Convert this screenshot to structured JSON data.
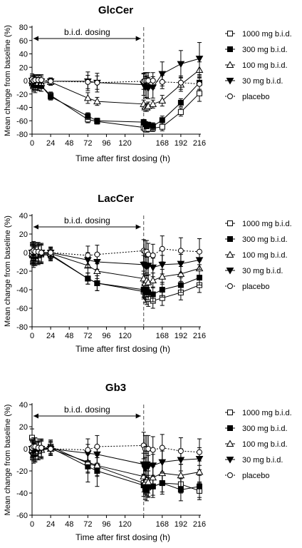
{
  "legend": [
    {
      "name": "1000 mg b.i.d.",
      "marker": "square-open"
    },
    {
      "name": "300 mg b.i.d.",
      "marker": "square-filled"
    },
    {
      "name": "100 mg b.i.d.",
      "marker": "triangle-up-open"
    },
    {
      "name": "30 mg b.i.d.",
      "marker": "triangle-down-filled"
    },
    {
      "name": "placebo",
      "marker": "circle-open"
    }
  ],
  "chart_data": [
    {
      "type": "line",
      "title": "GlcCer",
      "xlabel": "Time after first dosing (h)",
      "ylabel": "Mean change from baseline (%)",
      "annotation": "b.i.d. dosing",
      "dosing_range": [
        0,
        144
      ],
      "vline_x": 144,
      "xticks": [
        0,
        24,
        48,
        72,
        96,
        120,
        144,
        168,
        192,
        216
      ],
      "xtick_labels": [
        "0",
        "24",
        "48",
        "72",
        "96",
        "120",
        "",
        "168",
        "192",
        "216"
      ],
      "yticks": [
        -80,
        -60,
        -40,
        -20,
        0,
        20,
        40,
        60,
        80
      ],
      "xlim": [
        0,
        216
      ],
      "ylim": [
        -80,
        80
      ],
      "series": [
        {
          "name": "1000 mg b.i.d.",
          "x": [
            0,
            2,
            4,
            8,
            12,
            24,
            72,
            84,
            144,
            146,
            148,
            150,
            156,
            168,
            192,
            216
          ],
          "y": [
            -4,
            -8,
            -10,
            -6,
            -8,
            -22,
            -58,
            -61,
            -70,
            -72,
            -73,
            -72,
            -71,
            -69,
            -47,
            -19
          ],
          "err": [
            8,
            8,
            8,
            8,
            8,
            5,
            5,
            4,
            4,
            4,
            4,
            4,
            5,
            6,
            6,
            12
          ]
        },
        {
          "name": "300 mg b.i.d.",
          "x": [
            0,
            2,
            4,
            8,
            12,
            24,
            72,
            84,
            144,
            146,
            148,
            150,
            156,
            168,
            192,
            216
          ],
          "y": [
            -2,
            -6,
            -5,
            -7,
            -8,
            -24,
            -53,
            -60,
            -62,
            -65,
            -68,
            -66,
            -68,
            -59,
            -33,
            -3
          ],
          "err": [
            8,
            8,
            8,
            8,
            8,
            5,
            5,
            4,
            4,
            4,
            4,
            4,
            5,
            6,
            6,
            10
          ]
        },
        {
          "name": "100 mg b.i.d.",
          "x": [
            0,
            2,
            4,
            8,
            12,
            24,
            72,
            84,
            144,
            146,
            148,
            150,
            156,
            168,
            192,
            216
          ],
          "y": [
            0,
            -2,
            -3,
            -3,
            -4,
            -2,
            -26,
            -31,
            -35,
            -40,
            -40,
            -38,
            -35,
            -30,
            -6,
            16
          ],
          "err": [
            8,
            8,
            8,
            8,
            8,
            5,
            8,
            6,
            6,
            6,
            6,
            6,
            6,
            8,
            10,
            12
          ]
        },
        {
          "name": "30 mg b.i.d.",
          "x": [
            0,
            2,
            4,
            8,
            12,
            24,
            72,
            84,
            144,
            146,
            148,
            150,
            156,
            168,
            192,
            216
          ],
          "y": [
            0,
            -2,
            -1,
            0,
            -1,
            -1,
            -1,
            -3,
            -6,
            -10,
            -9,
            -11,
            -10,
            10,
            25,
            33
          ],
          "err": [
            8,
            8,
            8,
            8,
            8,
            5,
            14,
            14,
            16,
            16,
            16,
            16,
            16,
            18,
            20,
            24
          ]
        },
        {
          "name": "placebo",
          "x": [
            0,
            2,
            4,
            8,
            12,
            24,
            72,
            84,
            144,
            146,
            148,
            150,
            156,
            168,
            192,
            216
          ],
          "y": [
            2,
            0,
            1,
            1,
            1,
            -1,
            -2,
            -3,
            -1,
            0,
            0,
            0,
            0,
            -2,
            -3,
            -5
          ],
          "err": [
            8,
            8,
            8,
            8,
            8,
            5,
            10,
            10,
            12,
            12,
            12,
            12,
            12,
            10,
            10,
            10
          ]
        }
      ]
    },
    {
      "type": "line",
      "title": "LacCer",
      "xlabel": "Time after first dosing (h)",
      "ylabel": "Mean change from baseline (%)",
      "annotation": "b.i.d. dosing",
      "dosing_range": [
        0,
        144
      ],
      "vline_x": 144,
      "xticks": [
        0,
        24,
        48,
        72,
        96,
        120,
        144,
        168,
        192,
        216
      ],
      "xtick_labels": [
        "0",
        "24",
        "48",
        "72",
        "96",
        "120",
        "",
        "168",
        "192",
        "216"
      ],
      "yticks": [
        -80,
        -60,
        -40,
        -20,
        0,
        20,
        40
      ],
      "xlim": [
        0,
        216
      ],
      "ylim": [
        -80,
        40
      ],
      "series": [
        {
          "name": "1000 mg b.i.d.",
          "x": [
            0,
            2,
            4,
            8,
            12,
            24,
            72,
            84,
            144,
            146,
            148,
            150,
            156,
            168,
            192,
            216
          ],
          "y": [
            -3,
            -6,
            -4,
            -3,
            -2,
            -3,
            -28,
            -33,
            -42,
            -46,
            -48,
            -50,
            -52,
            -49,
            -43,
            -35
          ],
          "err": [
            10,
            10,
            10,
            10,
            10,
            6,
            6,
            8,
            8,
            8,
            8,
            8,
            8,
            8,
            8,
            8
          ]
        },
        {
          "name": "300 mg b.i.d.",
          "x": [
            0,
            2,
            4,
            8,
            12,
            24,
            72,
            84,
            144,
            146,
            148,
            150,
            156,
            168,
            192,
            216
          ],
          "y": [
            -2,
            -4,
            -3,
            -2,
            -1,
            -2,
            -28,
            -33,
            -40,
            -42,
            -40,
            -43,
            -45,
            -40,
            -35,
            -27
          ],
          "err": [
            10,
            10,
            10,
            10,
            10,
            6,
            6,
            8,
            8,
            8,
            8,
            8,
            8,
            8,
            8,
            8
          ]
        },
        {
          "name": "100 mg b.i.d.",
          "x": [
            0,
            2,
            4,
            8,
            12,
            24,
            72,
            84,
            144,
            146,
            148,
            150,
            156,
            168,
            192,
            216
          ],
          "y": [
            -1,
            -2,
            -2,
            -1,
            0,
            -1,
            -14,
            -20,
            -28,
            -33,
            -30,
            -32,
            -30,
            -26,
            -23,
            -17
          ],
          "err": [
            10,
            10,
            10,
            10,
            10,
            6,
            8,
            8,
            8,
            8,
            8,
            8,
            8,
            8,
            8,
            8
          ]
        },
        {
          "name": "30 mg b.i.d.",
          "x": [
            0,
            2,
            4,
            8,
            12,
            24,
            72,
            84,
            144,
            146,
            148,
            150,
            156,
            168,
            192,
            216
          ],
          "y": [
            0,
            -1,
            0,
            0,
            0,
            0,
            -8,
            -10,
            -13,
            -14,
            -15,
            -14,
            -16,
            -13,
            -12,
            -8
          ],
          "err": [
            10,
            10,
            10,
            10,
            10,
            6,
            8,
            8,
            10,
            10,
            10,
            10,
            10,
            10,
            10,
            10
          ]
        },
        {
          "name": "placebo",
          "x": [
            0,
            2,
            4,
            8,
            12,
            24,
            72,
            84,
            144,
            146,
            148,
            150,
            156,
            168,
            192,
            216
          ],
          "y": [
            1,
            2,
            1,
            1,
            0,
            0,
            -3,
            -2,
            2,
            1,
            1,
            -2,
            -3,
            4,
            2,
            1
          ],
          "err": [
            10,
            10,
            10,
            10,
            10,
            6,
            10,
            10,
            12,
            12,
            12,
            12,
            12,
            14,
            14,
            14
          ]
        }
      ]
    },
    {
      "type": "line",
      "title": "Gb3",
      "xlabel": "Time after first dosing (h)",
      "ylabel": "Mean change from baseline (%)",
      "annotation": "b.i.d. dosing",
      "dosing_range": [
        0,
        144
      ],
      "vline_x": 144,
      "xticks": [
        0,
        24,
        48,
        72,
        96,
        120,
        144,
        168,
        192,
        216
      ],
      "xtick_labels": [
        "0",
        "24",
        "48",
        "72",
        "96",
        "120",
        "",
        "168",
        "192",
        "216"
      ],
      "yticks": [
        -60,
        -40,
        -20,
        0,
        20,
        40
      ],
      "xlim": [
        0,
        216
      ],
      "ylim": [
        -60,
        40
      ],
      "series": [
        {
          "name": "1000 mg b.i.d.",
          "x": [
            0,
            2,
            4,
            8,
            12,
            24,
            72,
            84,
            144,
            146,
            148,
            150,
            156,
            168,
            192,
            216
          ],
          "y": [
            10,
            -3,
            -2,
            -1,
            0,
            2,
            -13,
            -16,
            -31,
            -33,
            -34,
            -35,
            -34,
            -31,
            -32,
            -38
          ],
          "err": [
            8,
            8,
            8,
            8,
            8,
            6,
            8,
            8,
            8,
            8,
            8,
            8,
            8,
            8,
            8,
            8
          ]
        },
        {
          "name": "300 mg b.i.d.",
          "x": [
            0,
            2,
            4,
            8,
            12,
            24,
            72,
            84,
            144,
            146,
            148,
            150,
            156,
            168,
            192,
            216
          ],
          "y": [
            -2,
            -5,
            -4,
            -2,
            -1,
            1,
            -16,
            -20,
            -33,
            -36,
            -37,
            -34,
            -34,
            -31,
            -37,
            -34
          ],
          "err": [
            8,
            8,
            8,
            8,
            8,
            6,
            14,
            14,
            10,
            10,
            10,
            10,
            10,
            10,
            10,
            10
          ]
        },
        {
          "name": "100 mg b.i.d.",
          "x": [
            0,
            2,
            4,
            8,
            12,
            24,
            72,
            84,
            144,
            146,
            148,
            150,
            156,
            168,
            192,
            216
          ],
          "y": [
            -1,
            -3,
            -3,
            -2,
            -1,
            0,
            -12,
            -15,
            -25,
            -30,
            -28,
            -30,
            -26,
            -22,
            -24,
            -21
          ],
          "err": [
            8,
            8,
            8,
            8,
            8,
            6,
            10,
            10,
            10,
            10,
            10,
            10,
            10,
            10,
            10,
            10
          ]
        },
        {
          "name": "30 mg b.i.d.",
          "x": [
            0,
            2,
            4,
            8,
            12,
            24,
            72,
            84,
            144,
            146,
            148,
            150,
            156,
            168,
            192,
            216
          ],
          "y": [
            0,
            -2,
            -1,
            -1,
            0,
            0,
            -4,
            -5,
            -14,
            -18,
            -14,
            -16,
            -15,
            -12,
            -10,
            -9
          ],
          "err": [
            8,
            8,
            8,
            8,
            8,
            6,
            8,
            8,
            10,
            10,
            10,
            10,
            10,
            10,
            10,
            10
          ]
        },
        {
          "name": "placebo",
          "x": [
            0,
            2,
            4,
            8,
            12,
            24,
            72,
            84,
            144,
            146,
            148,
            150,
            156,
            168,
            192,
            216
          ],
          "y": [
            1,
            2,
            2,
            1,
            1,
            0,
            -1,
            2,
            3,
            0,
            0,
            0,
            -1,
            1,
            -2,
            -3
          ],
          "err": [
            8,
            8,
            8,
            8,
            8,
            6,
            10,
            10,
            12,
            12,
            12,
            12,
            12,
            12,
            12,
            12
          ]
        }
      ]
    }
  ]
}
